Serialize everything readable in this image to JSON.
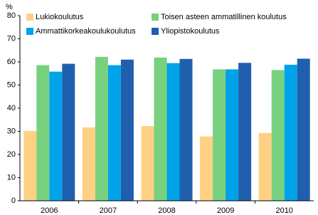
{
  "chart_data": {
    "type": "bar",
    "y_label": "%",
    "categories": [
      "2006",
      "2007",
      "2008",
      "2009",
      "2010"
    ],
    "series": [
      {
        "name": "Lukiokoulutus",
        "color": "#ffd184",
        "values": [
          30.2,
          31.7,
          32.3,
          27.8,
          29.3
        ]
      },
      {
        "name": "Toisen asteen ammatillinen koulutus",
        "color": "#78d17f",
        "values": [
          58.6,
          62.2,
          61.9,
          56.8,
          56.5
        ]
      },
      {
        "name": "Ammattikorkeakoulukoulutus",
        "color": "#00a2e8",
        "values": [
          55.8,
          58.6,
          59.5,
          56.8,
          58.8
        ]
      },
      {
        "name": "Yliopistokoulutus",
        "color": "#1f5fae",
        "values": [
          59.2,
          61.0,
          61.3,
          59.6,
          61.4
        ]
      }
    ],
    "ylim": [
      0,
      80
    ],
    "yticks": [
      0,
      10,
      20,
      30,
      40,
      50,
      60,
      70,
      80
    ],
    "legend": "top-left"
  }
}
